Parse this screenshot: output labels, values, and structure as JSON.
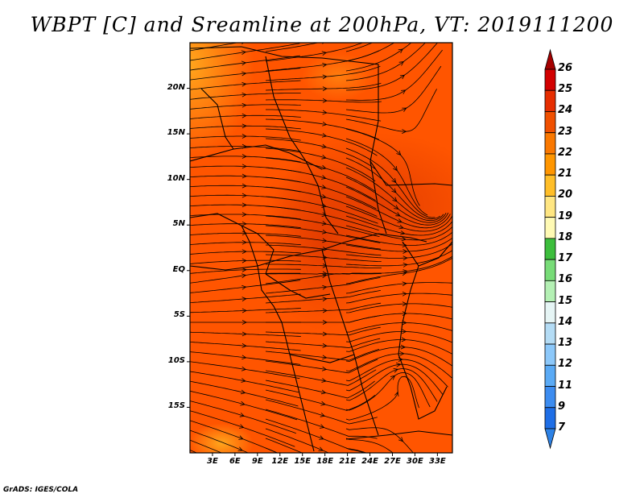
{
  "title": "WBPT [C] and Sreamline at 200hPa, VT: 2019111200",
  "footer": "GrADS: IGES/COLA",
  "map": {
    "lat_labels": [
      "20N",
      "15N",
      "10N",
      "5N",
      "EQ",
      "5S",
      "10S",
      "15S"
    ],
    "lat_values": [
      20,
      15,
      10,
      5,
      0,
      -5,
      -10,
      -15
    ],
    "lon_labels": [
      "3E",
      "6E",
      "9E",
      "12E",
      "15E",
      "18E",
      "21E",
      "24E",
      "27E",
      "30E",
      "33E"
    ],
    "lon_values": [
      3,
      6,
      9,
      12,
      15,
      18,
      21,
      24,
      27,
      30,
      33
    ],
    "lat_range": [
      -20,
      25
    ],
    "lon_range": [
      0,
      35
    ],
    "field_colors": {
      "base": "#ff5500",
      "warm": "#e63c00",
      "cool": "#ff8c00",
      "edge": "#ffb020"
    },
    "streamline_color": "#000000"
  },
  "colorbar": {
    "levels": [
      "26",
      "25",
      "24",
      "23",
      "22",
      "21",
      "20",
      "19",
      "18",
      "17",
      "16",
      "15",
      "14",
      "13",
      "12",
      "11",
      "9",
      "7"
    ],
    "colors": [
      "#a50000",
      "#d20000",
      "#e62d00",
      "#f05000",
      "#fa7800",
      "#ff9600",
      "#ffbe28",
      "#ffe682",
      "#fffab4",
      "#3cbe3c",
      "#78dc78",
      "#b4f0b4",
      "#e6f5f5",
      "#b4dcf5",
      "#8cc8fa",
      "#5aaaf5",
      "#3c8cf0",
      "#1e6ee6",
      "#2d82e6"
    ]
  }
}
